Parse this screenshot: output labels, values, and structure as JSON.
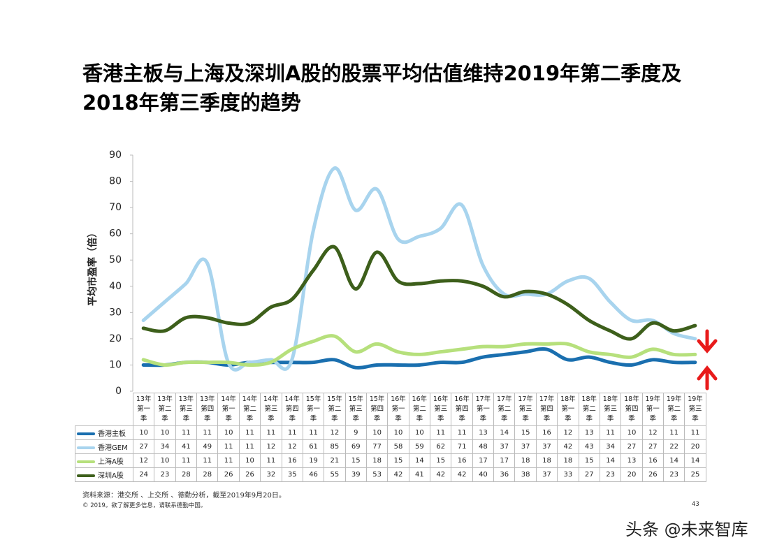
{
  "chart_data": {
    "type": "line",
    "title": "香港主板与上海及深圳A股的股票平均估值维持2019年第二季度及2018年第三季度的趋势",
    "y_label": "平均市盈率（倍）",
    "categories": [
      "13年第一季",
      "13年第二季",
      "13年第三季",
      "13年第四季",
      "14年第一季",
      "14年第二季",
      "14年第三季",
      "14年第四季",
      "15年第一季",
      "15年第二季",
      "15年第三季",
      "15年第四季",
      "16年第一季",
      "16年第二季",
      "16年第三季",
      "16年第四季",
      "17年第一季",
      "17年第二季",
      "17年第三季",
      "17年第四季",
      "18年第一季",
      "18年第二季",
      "18年第三季",
      "18年第四季",
      "19年第一季",
      "19年第二季",
      "19年第三季"
    ],
    "series": [
      {
        "name": "香港主板",
        "color": "#1a6faf",
        "values": [
          10,
          10,
          11,
          11,
          10,
          11,
          11,
          11,
          11,
          12,
          9,
          10,
          10,
          10,
          11,
          11,
          13,
          14,
          15,
          16,
          12,
          13,
          11,
          10,
          12,
          11,
          11
        ]
      },
      {
        "name": "香港GEM",
        "color": "#a8d4ee",
        "values": [
          27,
          34,
          41,
          49,
          11,
          11,
          12,
          12,
          61,
          85,
          69,
          77,
          58,
          59,
          62,
          71,
          48,
          37,
          37,
          37,
          42,
          43,
          34,
          27,
          27,
          22,
          20
        ]
      },
      {
        "name": "上海A股",
        "color": "#b6e07c",
        "values": [
          12,
          10,
          11,
          11,
          11,
          10,
          11,
          16,
          19,
          21,
          15,
          18,
          15,
          14,
          15,
          16,
          17,
          17,
          18,
          18,
          18,
          15,
          14,
          13,
          16,
          14,
          14
        ]
      },
      {
        "name": "深圳A股",
        "color": "#3d5f1b",
        "values": [
          24,
          23,
          28,
          28,
          26,
          26,
          32,
          35,
          46,
          55,
          39,
          53,
          42,
          41,
          42,
          42,
          40,
          36,
          38,
          37,
          33,
          27,
          23,
          20,
          26,
          23,
          25
        ]
      }
    ],
    "ylim": [
      0,
      90
    ],
    "yticks": [
      0,
      10,
      20,
      30,
      40,
      50,
      60,
      70,
      80,
      90
    ],
    "source": "资料来源：港交所 、上交所 、德勤分析，截至2019年9月20日。",
    "copyright": "© 2019。欲了解更多信息，请联系德勤中国。",
    "page_number": "43",
    "watermark": "头条 @未来智库"
  }
}
